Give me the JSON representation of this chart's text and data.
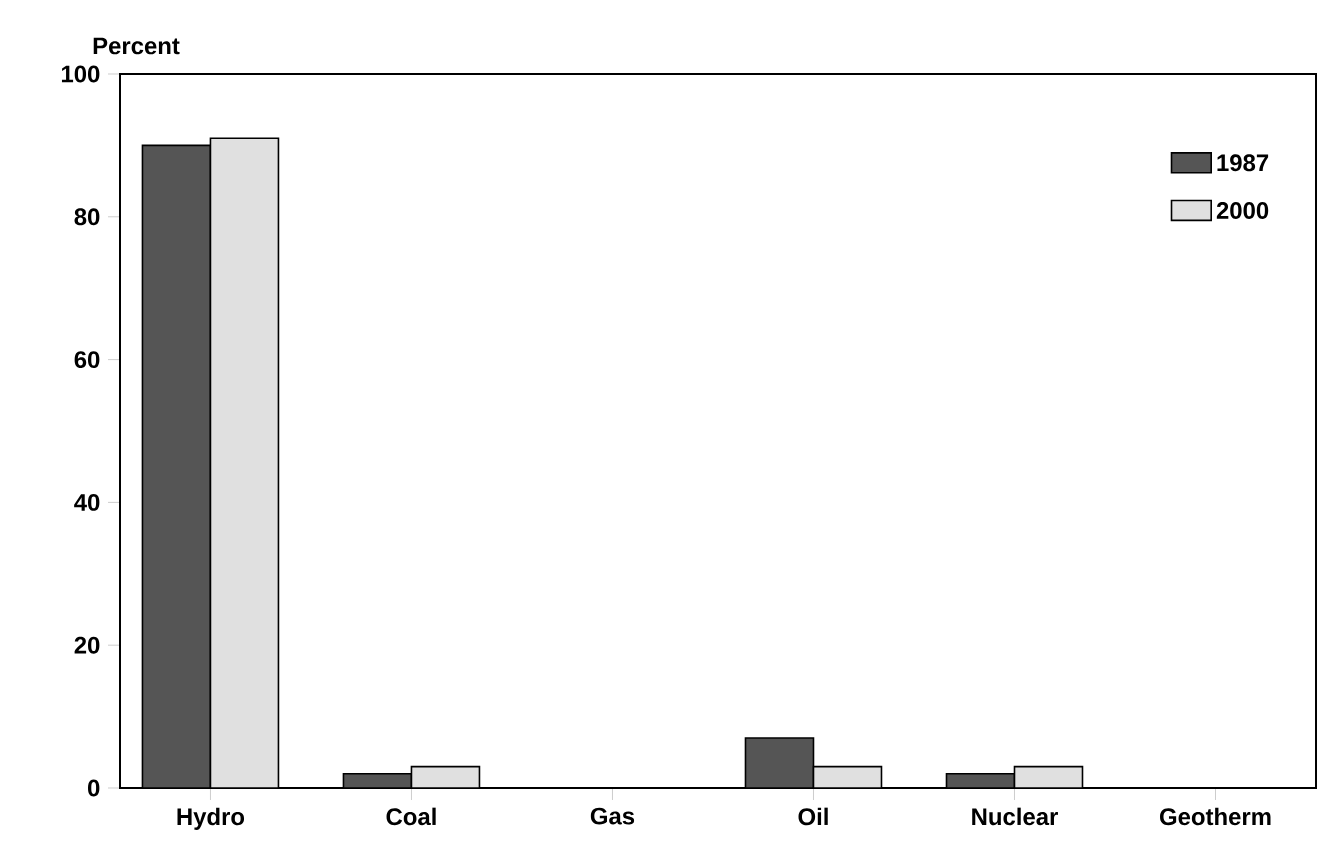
{
  "chart_data": {
    "type": "bar",
    "ylabel": "Percent",
    "categories": [
      "Hydro",
      "Coal",
      "Gas",
      "Oil",
      "Nuclear",
      "Geotherm"
    ],
    "series": [
      {
        "name": "1987",
        "color": "#555555",
        "values": [
          90,
          2,
          0,
          7,
          2,
          0
        ]
      },
      {
        "name": "2000",
        "color": "#e0e0e0",
        "values": [
          91,
          3,
          0,
          3,
          3,
          0
        ]
      }
    ],
    "ylim": [
      0,
      100
    ],
    "yticks": [
      0,
      20,
      40,
      60,
      80,
      100
    ],
    "legend": "top right"
  }
}
